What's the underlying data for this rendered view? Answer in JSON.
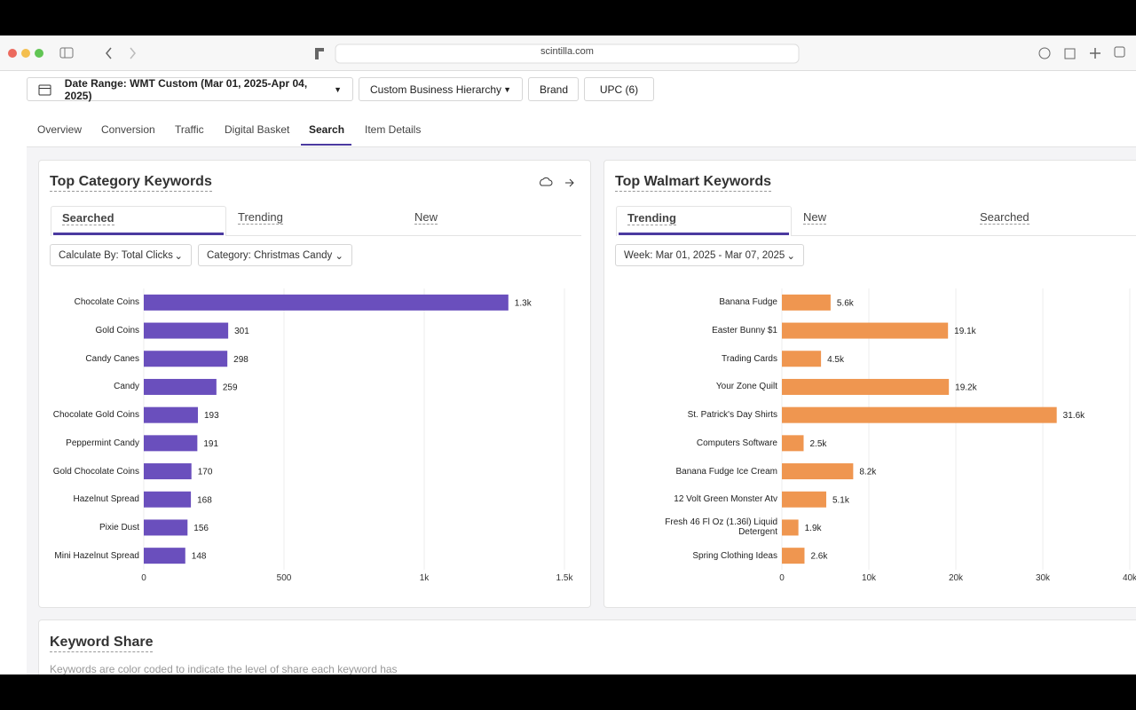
{
  "browser": {
    "url": "scintilla.com"
  },
  "filters": [
    "Date Range: WMT Custom (Mar 01, 2025-Apr 04, 2025)",
    "Custom Business Hierarchy",
    "Brand",
    "UPC (6)"
  ],
  "tabs": [
    "Overview",
    "Conversion",
    "Traffic",
    "Digital Basket",
    "Search",
    "Item Details"
  ],
  "panels": [
    {
      "title": "Top Category Keywords",
      "tabs": [
        "Searched",
        "Trending",
        "New"
      ],
      "dropdowns": [
        "Calculate By: Total Clicks",
        "Category: Christmas Candy"
      ]
    },
    {
      "title": "Top Walmart Keywords",
      "tabs": [
        "Trending",
        "New",
        "Searched"
      ],
      "dropdowns": [
        "Week: Mar 01, 2025 - Mar 07, 2025"
      ]
    }
  ],
  "keyword_share": {
    "title": "Keyword Share",
    "subtitle": "Keywords are color coded to indicate the level of share each keyword has"
  },
  "chart_data": [
    {
      "type": "bar",
      "orientation": "horizontal",
      "color": "#6a4fbd",
      "grid": true,
      "categories": [
        "Chocolate Coins",
        "Gold Coins",
        "Candy Canes",
        "Candy",
        "Chocolate Gold Coins",
        "Peppermint Candy",
        "Gold Chocolate Coins",
        "Hazelnut Spread",
        "Pixie Dust",
        "Mini Hazelnut Spread"
      ],
      "values": [
        1300,
        301,
        298,
        259,
        193,
        191,
        170,
        168,
        156,
        148
      ],
      "value_labels": [
        "1.3k",
        "301",
        "298",
        "259",
        "193",
        "191",
        "170",
        "168",
        "156",
        "148"
      ],
      "xlim": [
        0,
        1500
      ],
      "xticks": [
        0,
        500,
        {
          "value": 1000,
          "label": "1k"
        },
        {
          "value": 1500,
          "label": "1.5k"
        }
      ]
    },
    {
      "type": "bar",
      "orientation": "horizontal",
      "color": "#ef9650",
      "grid": true,
      "categories": [
        "Banana Fudge",
        "Easter Bunny $1",
        "Trading Cards",
        "Your Zone Quilt",
        "St. Patrick's Day Shirts",
        "Computers Software",
        "Banana Fudge Ice Cream",
        "12 Volt Green Monster Atv",
        "Fresh 46 Fl Oz (1.36l) Liquid Detergent",
        "Spring Clothing Ideas"
      ],
      "values": [
        5600,
        19100,
        4500,
        19200,
        31600,
        2500,
        8200,
        5100,
        1900,
        2600
      ],
      "value_labels": [
        "5.6k",
        "19.1k",
        "4.5k",
        "19.2k",
        "31.6k",
        "2.5k",
        "8.2k",
        "5.1k",
        "1.9k",
        "2.6k"
      ],
      "xlim": [
        0,
        40000
      ],
      "xticks": [
        0,
        {
          "value": 10000,
          "label": "10k"
        },
        {
          "value": 20000,
          "label": "20k"
        },
        {
          "value": 30000,
          "label": "30k"
        },
        {
          "value": 40000,
          "label": "40k"
        }
      ]
    }
  ]
}
